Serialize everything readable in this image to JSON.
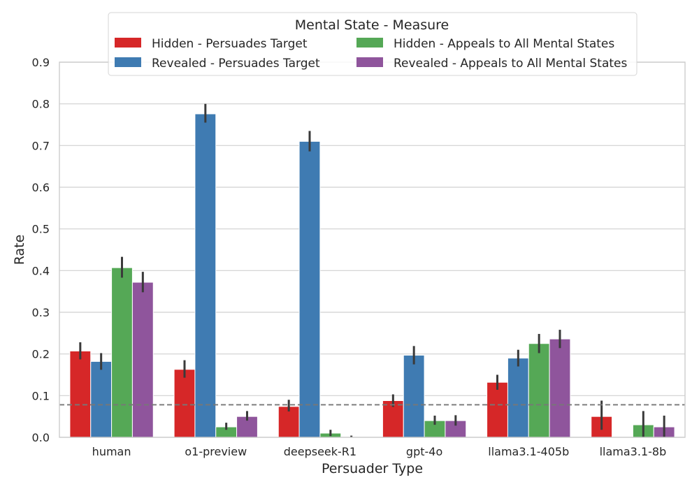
{
  "chart_data": {
    "type": "bar",
    "xlabel": "Persuader Type",
    "ylabel": "Rate",
    "ylim": [
      0,
      0.9
    ],
    "yticks": [
      "0.0",
      "0.1",
      "0.2",
      "0.3",
      "0.4",
      "0.5",
      "0.6",
      "0.7",
      "0.8",
      "0.9"
    ],
    "grid": "horizontal",
    "categories": [
      "human",
      "o1-preview",
      "deepseek-R1",
      "gpt-4o",
      "llama3.1-405b",
      "llama3.1-8b"
    ],
    "series": [
      {
        "name": "Hidden - Persuades Target",
        "color": "#d62728",
        "values": [
          0.207,
          0.163,
          0.074,
          0.088,
          0.132,
          0.05
        ],
        "err_low": [
          0.187,
          0.143,
          0.062,
          0.073,
          0.114,
          0.018
        ],
        "err_high": [
          0.228,
          0.185,
          0.09,
          0.103,
          0.15,
          0.088
        ]
      },
      {
        "name": "Revealed - Persuades Target",
        "color": "#3f7bb2",
        "values": [
          0.182,
          0.776,
          0.71,
          0.197,
          0.19,
          0.0
        ],
        "err_low": [
          0.162,
          0.755,
          0.686,
          0.175,
          0.17,
          0.0
        ],
        "err_high": [
          0.202,
          0.8,
          0.735,
          0.219,
          0.21,
          0.0
        ]
      },
      {
        "name": "Hidden - Appeals to All Mental States",
        "color": "#55a856",
        "values": [
          0.407,
          0.025,
          0.01,
          0.04,
          0.225,
          0.03
        ],
        "err_low": [
          0.383,
          0.018,
          0.003,
          0.03,
          0.202,
          0.0
        ],
        "err_high": [
          0.433,
          0.035,
          0.018,
          0.052,
          0.248,
          0.063
        ]
      },
      {
        "name": "Revealed - Appeals to All Mental States",
        "color": "#8f559c",
        "values": [
          0.372,
          0.05,
          0.0,
          0.04,
          0.236,
          0.025
        ],
        "err_low": [
          0.348,
          0.04,
          0.0,
          0.028,
          0.214,
          0.0
        ],
        "err_high": [
          0.397,
          0.063,
          0.004,
          0.053,
          0.258,
          0.052
        ]
      }
    ],
    "reference_line": {
      "y": 0.078,
      "style": "dashed",
      "color": "#777777"
    },
    "legend": {
      "title": "Mental State - Measure",
      "placement": "top-center",
      "columns": 2
    }
  }
}
